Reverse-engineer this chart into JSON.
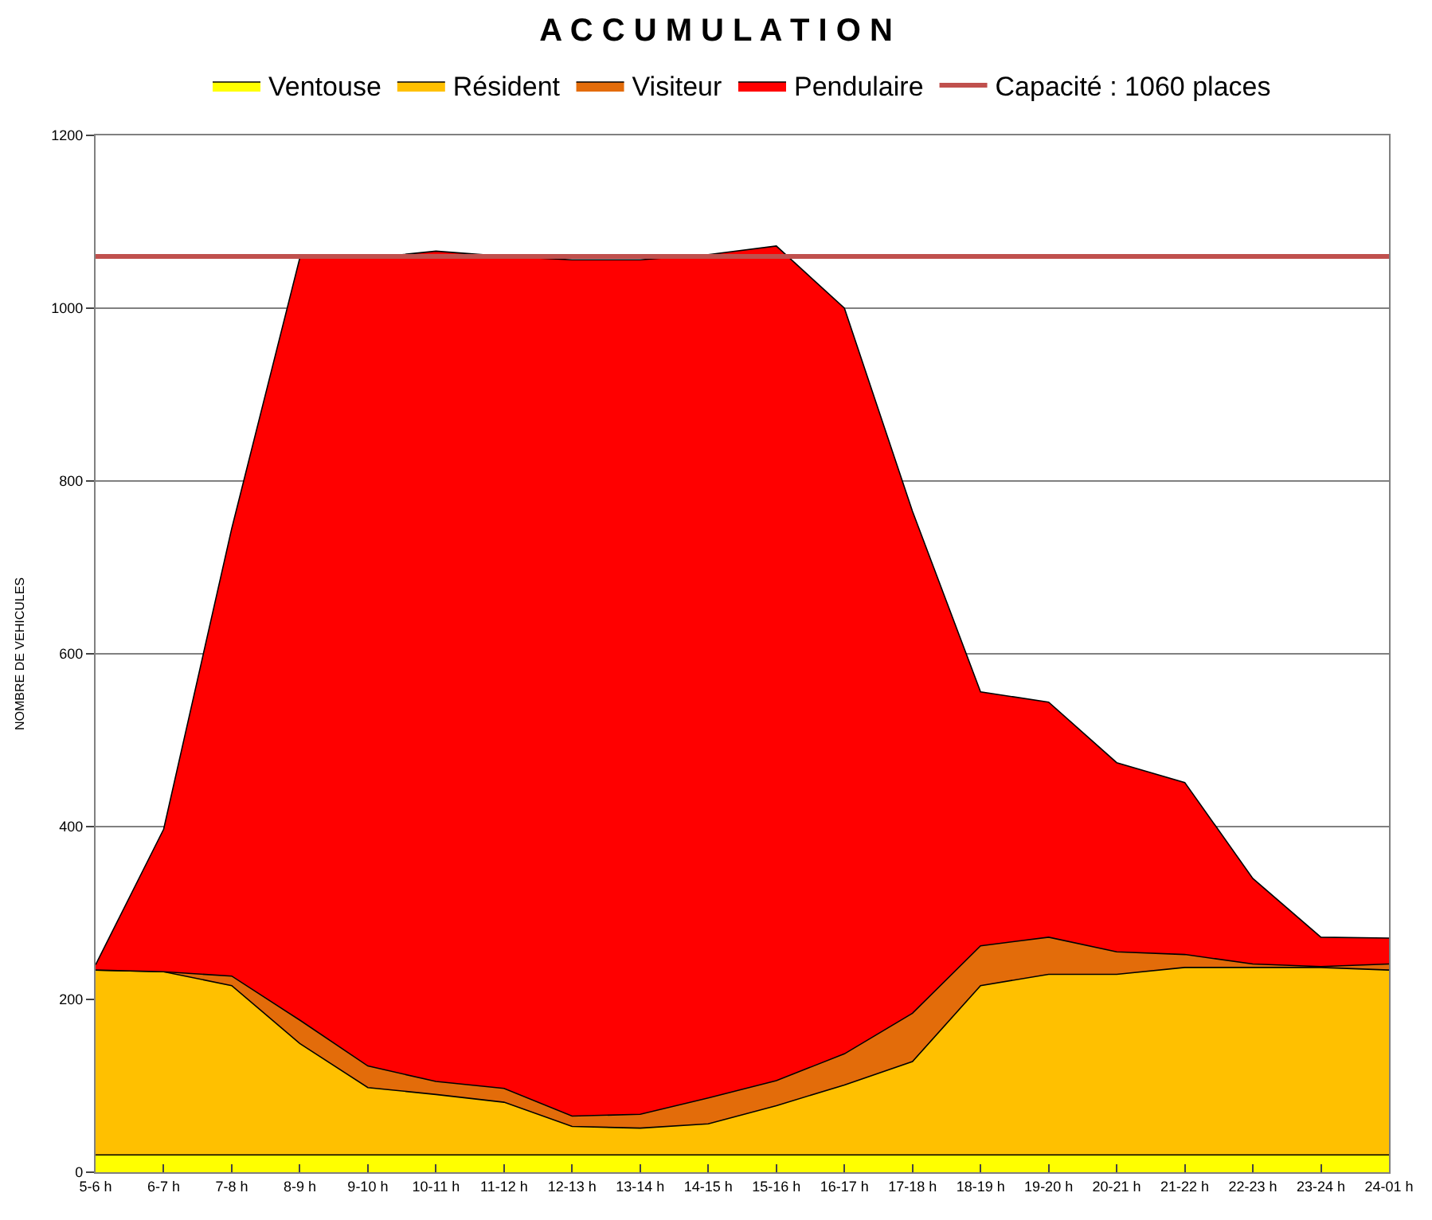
{
  "chart_data": {
    "type": "area",
    "stacked": true,
    "title": "A C C U M U L A T I O N",
    "ylabel": "NOMBRE DE VEHICULES",
    "categories": [
      "5-6 h",
      "6-7 h",
      "7-8 h",
      "8-9 h",
      "9-10 h",
      "10-11 h",
      "11-12 h",
      "12-13 h",
      "13-14 h",
      "14-15 h",
      "15-16 h",
      "16-17 h",
      "17-18 h",
      "18-19 h",
      "19-20 h",
      "20-21 h",
      "21-22 h",
      "22-23 h",
      "23-24 h",
      "24-01 h"
    ],
    "series": [
      {
        "name": "Ventouse",
        "color": "#ffff00",
        "values": [
          20,
          20,
          20,
          20,
          20,
          20,
          20,
          20,
          20,
          20,
          20,
          20,
          20,
          20,
          20,
          20,
          20,
          20,
          20,
          20
        ]
      },
      {
        "name": "Résident",
        "color": "#ffc000",
        "values": [
          214,
          212,
          196,
          129,
          78,
          70,
          61,
          33,
          31,
          36,
          57,
          81,
          108,
          196,
          209,
          209,
          217,
          217,
          217,
          214
        ]
      },
      {
        "name": "Visiteur",
        "color": "#e36c0a",
        "values": [
          0,
          0,
          11,
          27,
          25,
          15,
          16,
          12,
          16,
          30,
          29,
          36,
          56,
          46,
          43,
          26,
          15,
          4,
          1,
          7
        ]
      },
      {
        "name": "Pendulaire",
        "color": "#ff0000",
        "values": [
          6,
          165,
          518,
          882,
          935,
          961,
          963,
          991,
          989,
          976,
          966,
          863,
          581,
          294,
          272,
          219,
          199,
          99,
          34,
          30
        ]
      }
    ],
    "ref_lines": [
      {
        "axis": "y",
        "value": 1060,
        "label": "Capacité : 1060 places",
        "color": "#c0504d"
      }
    ],
    "ylim": [
      0,
      1200
    ],
    "yticks": [
      0,
      200,
      400,
      600,
      800,
      1000,
      1200
    ],
    "grid": "y",
    "legend": "top"
  }
}
